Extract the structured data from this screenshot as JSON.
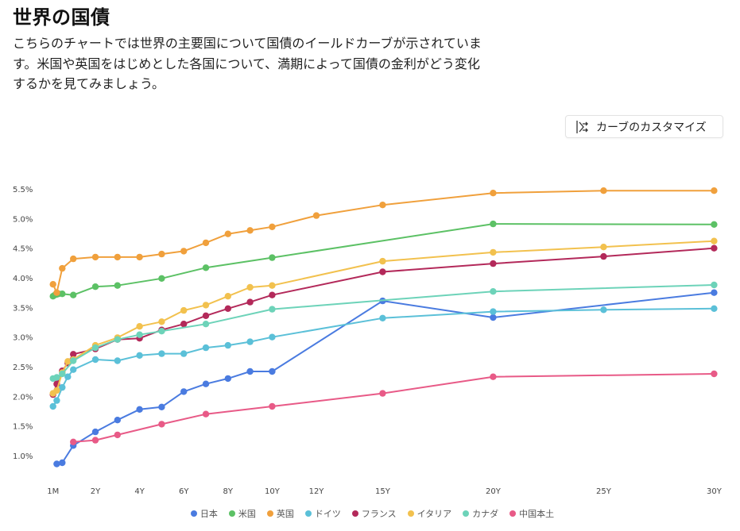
{
  "header": {
    "title": "世界の国債",
    "description": "こちらのチャートでは世界の主要国について国債のイールドカーブが示されています。米国や英国をはじめとした各国について、満期によって国債の金利がどう変化するかを見てみましょう。"
  },
  "toolbar": {
    "customize_label": "カーブのカスタマイズ",
    "customize_icon": "curve-customize-icon"
  },
  "chart_data": {
    "type": "line",
    "title": "",
    "xlabel": "",
    "ylabel": "",
    "x_unit": "years",
    "xlim": [
      0,
      30
    ],
    "ylim": [
      0.5,
      5.8
    ],
    "x_ticks": [
      {
        "value": 0.0833,
        "label": "1M"
      },
      {
        "value": 2,
        "label": "2Y"
      },
      {
        "value": 4,
        "label": "4Y"
      },
      {
        "value": 6,
        "label": "6Y"
      },
      {
        "value": 8,
        "label": "8Y"
      },
      {
        "value": 10,
        "label": "10Y"
      },
      {
        "value": 12,
        "label": "12Y"
      },
      {
        "value": 15,
        "label": "15Y"
      },
      {
        "value": 20,
        "label": "20Y"
      },
      {
        "value": 25,
        "label": "25Y"
      },
      {
        "value": 30,
        "label": "30Y"
      }
    ],
    "y_ticks": [
      {
        "value": 1.0,
        "label": "1.0%"
      },
      {
        "value": 1.5,
        "label": "1.5%"
      },
      {
        "value": 2.0,
        "label": "2.0%"
      },
      {
        "value": 2.5,
        "label": "2.5%"
      },
      {
        "value": 3.0,
        "label": "3.0%"
      },
      {
        "value": 3.5,
        "label": "3.5%"
      },
      {
        "value": 4.0,
        "label": "4.0%"
      },
      {
        "value": 4.5,
        "label": "4.5%"
      },
      {
        "value": 5.0,
        "label": "5.0%"
      },
      {
        "value": 5.5,
        "label": "5.5%"
      }
    ],
    "grid": false,
    "legend_position": "bottom-center",
    "series": [
      {
        "name": "日本",
        "color": "#4a7be0",
        "points": [
          [
            0.25,
            0.86
          ],
          [
            0.5,
            0.88
          ],
          [
            1,
            1.17
          ],
          [
            2,
            1.4
          ],
          [
            3,
            1.6
          ],
          [
            4,
            1.78
          ],
          [
            5,
            1.82
          ],
          [
            6,
            2.08
          ],
          [
            7,
            2.21
          ],
          [
            8,
            2.3
          ],
          [
            9,
            2.42
          ],
          [
            10,
            2.42
          ],
          [
            15,
            3.61
          ],
          [
            20,
            3.33
          ],
          [
            30,
            3.75
          ]
        ]
      },
      {
        "name": "米国",
        "color": "#5cc165",
        "points": [
          [
            0.0833,
            3.69
          ],
          [
            0.1667,
            3.71
          ],
          [
            0.25,
            3.72
          ],
          [
            0.3333,
            3.73
          ],
          [
            0.5,
            3.73
          ],
          [
            1,
            3.71
          ],
          [
            2,
            3.85
          ],
          [
            3,
            3.87
          ],
          [
            5,
            3.99
          ],
          [
            7,
            4.17
          ],
          [
            10,
            4.34
          ],
          [
            20,
            4.91
          ],
          [
            30,
            4.9
          ]
        ]
      },
      {
        "name": "英国",
        "color": "#f0a03c",
        "points": [
          [
            0.0833,
            3.89
          ],
          [
            0.25,
            3.75
          ],
          [
            0.5,
            4.16
          ],
          [
            1,
            4.32
          ],
          [
            2,
            4.35
          ],
          [
            3,
            4.35
          ],
          [
            4,
            4.35
          ],
          [
            5,
            4.4
          ],
          [
            6,
            4.45
          ],
          [
            7,
            4.59
          ],
          [
            8,
            4.74
          ],
          [
            9,
            4.8
          ],
          [
            10,
            4.86
          ],
          [
            12,
            5.05
          ],
          [
            15,
            5.23
          ],
          [
            20,
            5.43
          ],
          [
            25,
            5.47
          ],
          [
            30,
            5.47
          ]
        ]
      },
      {
        "name": "ドイツ",
        "color": "#5bc0d8",
        "points": [
          [
            0.0833,
            1.83
          ],
          [
            0.25,
            1.93
          ],
          [
            0.5,
            2.15
          ],
          [
            0.75,
            2.33
          ],
          [
            1,
            2.45
          ],
          [
            2,
            2.62
          ],
          [
            3,
            2.6
          ],
          [
            4,
            2.69
          ],
          [
            5,
            2.72
          ],
          [
            6,
            2.72
          ],
          [
            7,
            2.82
          ],
          [
            8,
            2.86
          ],
          [
            9,
            2.92
          ],
          [
            10,
            3.0
          ],
          [
            15,
            3.32
          ],
          [
            20,
            3.43
          ],
          [
            25,
            3.46
          ],
          [
            30,
            3.48
          ]
        ]
      },
      {
        "name": "フランス",
        "color": "#b3295a",
        "points": [
          [
            0.0833,
            2.03
          ],
          [
            0.25,
            2.21
          ],
          [
            0.5,
            2.43
          ],
          [
            0.75,
            2.56
          ],
          [
            1,
            2.71
          ],
          [
            2,
            2.8
          ],
          [
            3,
            2.96
          ],
          [
            4,
            2.98
          ],
          [
            5,
            3.12
          ],
          [
            6,
            3.22
          ],
          [
            7,
            3.36
          ],
          [
            8,
            3.48
          ],
          [
            9,
            3.59
          ],
          [
            10,
            3.71
          ],
          [
            15,
            4.1
          ],
          [
            20,
            4.24
          ],
          [
            25,
            4.36
          ],
          [
            30,
            4.5
          ]
        ]
      },
      {
        "name": "イタリア",
        "color": "#f2c14e",
        "points": [
          [
            0.0833,
            2.05
          ],
          [
            0.25,
            2.1
          ],
          [
            0.5,
            2.4
          ],
          [
            0.75,
            2.59
          ],
          [
            1,
            2.62
          ],
          [
            2,
            2.86
          ],
          [
            3,
            2.99
          ],
          [
            4,
            3.18
          ],
          [
            5,
            3.26
          ],
          [
            6,
            3.45
          ],
          [
            7,
            3.54
          ],
          [
            8,
            3.69
          ],
          [
            9,
            3.84
          ],
          [
            10,
            3.87
          ],
          [
            15,
            4.28
          ],
          [
            20,
            4.43
          ],
          [
            25,
            4.52
          ],
          [
            30,
            4.62
          ]
        ]
      },
      {
        "name": "カナダ",
        "color": "#6dd3b9",
        "points": [
          [
            0.0833,
            2.3
          ],
          [
            0.25,
            2.32
          ],
          [
            0.5,
            2.38
          ],
          [
            1,
            2.6
          ],
          [
            2,
            2.82
          ],
          [
            3,
            2.96
          ],
          [
            4,
            3.04
          ],
          [
            5,
            3.1
          ],
          [
            7,
            3.22
          ],
          [
            10,
            3.47
          ],
          [
            20,
            3.77
          ],
          [
            30,
            3.88
          ]
        ]
      },
      {
        "name": "中国本土",
        "color": "#e85a87",
        "points": [
          [
            1,
            1.23
          ],
          [
            2,
            1.26
          ],
          [
            3,
            1.35
          ],
          [
            5,
            1.53
          ],
          [
            7,
            1.7
          ],
          [
            10,
            1.83
          ],
          [
            15,
            2.05
          ],
          [
            20,
            2.33
          ],
          [
            30,
            2.38
          ]
        ]
      }
    ]
  }
}
